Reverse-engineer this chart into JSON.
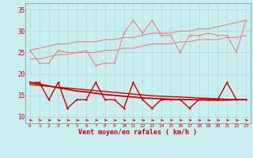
{
  "xlabel": "Vent moyen/en rafales ( km/h )",
  "x": [
    0,
    1,
    2,
    3,
    4,
    5,
    6,
    7,
    8,
    9,
    10,
    11,
    12,
    13,
    14,
    15,
    16,
    17,
    18,
    19,
    20,
    21,
    22,
    23
  ],
  "bg_color": "#c9eef0",
  "grid_color": "#b0d8dc",
  "series_light_zigzag": [
    25.5,
    22.5,
    22.5,
    25.5,
    25.0,
    25.0,
    25.5,
    22.0,
    22.5,
    22.5,
    29.5,
    32.5,
    29.5,
    32.5,
    29.0,
    29.0,
    25.0,
    29.0,
    29.0,
    29.5,
    29.0,
    29.0,
    25.0,
    32.5
  ],
  "series_light_trend1": [
    25.5,
    26.0,
    26.5,
    27.0,
    27.0,
    27.5,
    27.5,
    27.5,
    28.0,
    28.0,
    28.5,
    28.5,
    29.0,
    29.5,
    29.5,
    29.5,
    30.0,
    30.0,
    30.5,
    30.5,
    31.0,
    31.5,
    32.0,
    32.5
  ],
  "series_light_trend2": [
    23.5,
    23.5,
    24.0,
    24.5,
    24.5,
    25.0,
    25.0,
    25.0,
    25.5,
    25.5,
    26.0,
    26.0,
    26.5,
    27.0,
    27.0,
    27.0,
    27.5,
    27.5,
    28.0,
    28.0,
    28.0,
    28.5,
    28.5,
    29.0
  ],
  "series_dark_zigzag": [
    18,
    18,
    14,
    18,
    12,
    14,
    14,
    18,
    14,
    14,
    12,
    18,
    14,
    12,
    14,
    14,
    14,
    12,
    14,
    14,
    14,
    18,
    14,
    14
  ],
  "series_dark_trend1": [
    18.0,
    17.6,
    17.2,
    16.8,
    16.4,
    16.0,
    15.8,
    15.5,
    15.2,
    15.0,
    14.8,
    14.6,
    14.4,
    14.3,
    14.2,
    14.1,
    14.0,
    14.0,
    14.0,
    13.9,
    13.9,
    13.9,
    14.0,
    14.0
  ],
  "series_dark_trend2": [
    17.5,
    17.3,
    17.1,
    16.9,
    16.7,
    16.5,
    16.3,
    16.1,
    15.9,
    15.7,
    15.5,
    15.3,
    15.1,
    14.9,
    14.8,
    14.7,
    14.6,
    14.5,
    14.4,
    14.3,
    14.2,
    14.1,
    14.0,
    14.0
  ],
  "ylim": [
    8.5,
    36.5
  ],
  "yticks": [
    10,
    15,
    20,
    25,
    30,
    35
  ],
  "color_light": "#f08080",
  "color_dark": "#cc0000",
  "lw_light": 0.8,
  "lw_dark": 1.0,
  "marker_size": 2.5
}
